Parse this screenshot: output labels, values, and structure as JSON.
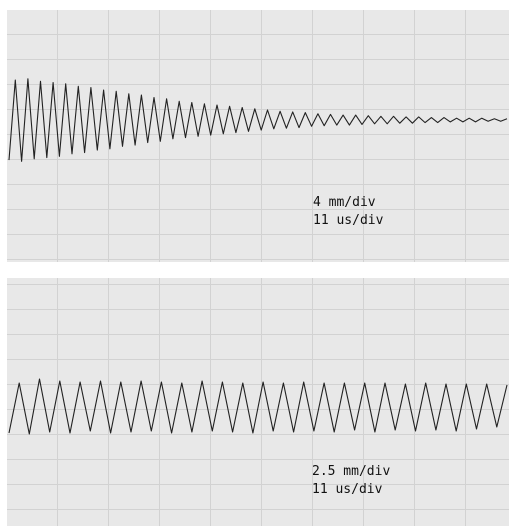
{
  "chart_data": [
    {
      "type": "line",
      "color": "#222222",
      "ylim": [
        -22.7,
        17.6
      ],
      "values": [
        -6.4,
        6.4,
        -6.6,
        6.6,
        -6.2,
        6.2,
        -6.0,
        6.0,
        -5.8,
        5.8,
        -5.4,
        5.4,
        -5.2,
        5.2,
        -4.8,
        4.8,
        -4.6,
        4.6,
        -4.2,
        4.2,
        -4.0,
        4.0,
        -3.6,
        3.6,
        -3.4,
        3.4,
        -3.0,
        3.0,
        -2.8,
        2.8,
        -2.6,
        2.6,
        -2.4,
        2.4,
        -2.2,
        2.2,
        -2.0,
        2.0,
        -1.8,
        1.8,
        -1.6,
        1.6,
        -1.4,
        1.4,
        -1.3,
        1.3,
        -1.2,
        1.2,
        -1.0,
        1.0,
        -0.9,
        0.9,
        -0.8,
        0.8,
        -0.8,
        0.8,
        -0.7,
        0.7,
        -0.6,
        0.6,
        -0.6,
        0.6,
        -0.5,
        0.5,
        -0.5,
        0.5,
        -0.4,
        0.4,
        -0.4,
        0.4,
        -0.3,
        0.3,
        -0.3,
        0.3,
        -0.3,
        0.3,
        -0.2,
        0.2,
        -0.2,
        0.2
      ],
      "annotations": [
        "4 mm/div",
        "11 us/div"
      ]
    },
    {
      "type": "line",
      "color": "#222222",
      "ylim": [
        -11.9,
        12.9
      ],
      "values": [
        -2.6,
        2.4,
        -2.7,
        2.8,
        -2.5,
        2.6,
        -2.6,
        2.5,
        -2.4,
        2.6,
        -2.6,
        2.5,
        -2.5,
        2.6,
        -2.4,
        2.5,
        -2.6,
        2.4,
        -2.5,
        2.6,
        -2.4,
        2.5,
        -2.5,
        2.4,
        -2.6,
        2.5,
        -2.4,
        2.4,
        -2.5,
        2.5,
        -2.4,
        2.4,
        -2.5,
        2.4,
        -2.3,
        2.4,
        -2.5,
        2.4,
        -2.3,
        2.3,
        -2.4,
        2.4,
        -2.3,
        2.3,
        -2.4,
        2.3,
        -2.2,
        2.3,
        -2.0,
        2.2
      ],
      "annotations": [
        "2.5 mm/div",
        "11 us/div"
      ]
    }
  ]
}
